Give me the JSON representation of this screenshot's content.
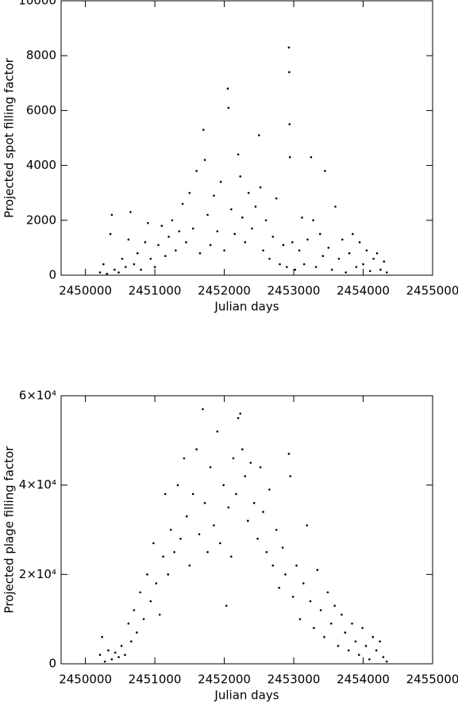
{
  "chart_data": [
    {
      "type": "scatter",
      "x_label": "Julian days",
      "y_label": "Projected spot filling factor",
      "color": "#000000",
      "xlim": [
        2449650,
        2455000
      ],
      "xticks": [
        2450000,
        2451000,
        2452000,
        2453000,
        2454000,
        2455000
      ],
      "ylim": [
        0,
        10000
      ],
      "yticks": [
        0,
        2000,
        4000,
        6000,
        8000,
        10000
      ],
      "x": [
        2450210,
        2450260,
        2450310,
        2450360,
        2450380,
        2450420,
        2450480,
        2450530,
        2450580,
        2450620,
        2450650,
        2450700,
        2450750,
        2450800,
        2450860,
        2450900,
        2450940,
        2451000,
        2451050,
        2451100,
        2451150,
        2451200,
        2451250,
        2451300,
        2451350,
        2451400,
        2451450,
        2451500,
        2451550,
        2451600,
        2451650,
        2451700,
        2451720,
        2451760,
        2451800,
        2451850,
        2451900,
        2451950,
        2452000,
        2452050,
        2452060,
        2452100,
        2452150,
        2452200,
        2452230,
        2452260,
        2452300,
        2452350,
        2452400,
        2452450,
        2452500,
        2452520,
        2452560,
        2452600,
        2452650,
        2452700,
        2452750,
        2452800,
        2452850,
        2452900,
        2452930,
        2452935,
        2452940,
        2452945,
        2452980,
        2453020,
        2453080,
        2453120,
        2453150,
        2453200,
        2453250,
        2453280,
        2453320,
        2453380,
        2453420,
        2453450,
        2453500,
        2453550,
        2453600,
        2453650,
        2453700,
        2453750,
        2453800,
        2453850,
        2453900,
        2453950,
        2454000,
        2454050,
        2454100,
        2454150,
        2454200,
        2454250,
        2454300,
        2454340
      ],
      "values": [
        100,
        400,
        50,
        1500,
        2200,
        200,
        100,
        600,
        300,
        1300,
        2300,
        400,
        800,
        200,
        1200,
        1900,
        600,
        300,
        1100,
        1800,
        700,
        1400,
        2000,
        900,
        1600,
        2600,
        1200,
        3000,
        1700,
        3800,
        800,
        5300,
        4200,
        2200,
        1100,
        2900,
        1600,
        3400,
        900,
        6800,
        6100,
        2400,
        1500,
        4400,
        3600,
        2100,
        1200,
        3000,
        1700,
        2500,
        5100,
        3200,
        900,
        2000,
        600,
        1400,
        2800,
        400,
        1100,
        300,
        8300,
        7400,
        5500,
        4300,
        1200,
        200,
        900,
        2100,
        400,
        1300,
        4300,
        2000,
        300,
        1500,
        700,
        3800,
        1000,
        200,
        2500,
        600,
        1300,
        100,
        800,
        1500,
        300,
        1200,
        400,
        900,
        150,
        600,
        800,
        200,
        500,
        100
      ]
    },
    {
      "type": "scatter",
      "x_label": "Julian days",
      "y_label": "Projected plage filling factor",
      "color": "#000000",
      "xlim": [
        2449650,
        2455000
      ],
      "xticks": [
        2450000,
        2451000,
        2452000,
        2453000,
        2454000,
        2455000
      ],
      "ylim": [
        0,
        60000
      ],
      "yticks": [
        0,
        {
          "value": 20000,
          "label": "2×10⁴"
        },
        {
          "value": 40000,
          "label": "4×10⁴"
        },
        {
          "value": 60000,
          "label": "6×10⁴"
        }
      ],
      "x": [
        2450210,
        2450240,
        2450280,
        2450330,
        2450380,
        2450430,
        2450480,
        2450520,
        2450570,
        2450620,
        2450660,
        2450700,
        2450740,
        2450790,
        2450840,
        2450890,
        2450940,
        2450980,
        2451020,
        2451070,
        2451120,
        2451150,
        2451190,
        2451230,
        2451280,
        2451330,
        2451370,
        2451420,
        2451460,
        2451500,
        2451550,
        2451600,
        2451640,
        2451690,
        2451720,
        2451760,
        2451800,
        2451850,
        2451900,
        2451940,
        2451990,
        2452030,
        2452060,
        2452100,
        2452130,
        2452170,
        2452200,
        2452230,
        2452260,
        2452300,
        2452340,
        2452380,
        2452430,
        2452480,
        2452520,
        2452560,
        2452610,
        2452650,
        2452700,
        2452750,
        2452790,
        2452840,
        2452880,
        2452930,
        2452950,
        2452990,
        2453040,
        2453090,
        2453140,
        2453190,
        2453240,
        2453290,
        2453340,
        2453390,
        2453440,
        2453490,
        2453540,
        2453590,
        2453640,
        2453690,
        2453740,
        2453790,
        2453840,
        2453890,
        2453940,
        2453990,
        2454040,
        2454090,
        2454140,
        2454190,
        2454240,
        2454290,
        2454340
      ],
      "values": [
        2000,
        6000,
        500,
        3000,
        1000,
        2500,
        1500,
        4000,
        2000,
        9000,
        5000,
        12000,
        7000,
        16000,
        10000,
        20000,
        14000,
        27000,
        18000,
        11000,
        24000,
        38000,
        20000,
        30000,
        25000,
        40000,
        28000,
        46000,
        33000,
        22000,
        38000,
        48000,
        29000,
        57000,
        36000,
        25000,
        44000,
        31000,
        52000,
        27000,
        40000,
        13000,
        35000,
        24000,
        46000,
        38000,
        55000,
        56000,
        48000,
        42000,
        32000,
        45000,
        36000,
        28000,
        44000,
        34000,
        25000,
        39000,
        22000,
        30000,
        17000,
        26000,
        20000,
        47000,
        42000,
        15000,
        22000,
        10000,
        18000,
        31000,
        14000,
        8000,
        21000,
        12000,
        6000,
        16000,
        9000,
        13000,
        4000,
        11000,
        7000,
        3000,
        9000,
        5000,
        2000,
        8000,
        4000,
        1000,
        6000,
        3000,
        5000,
        1500,
        500
      ]
    }
  ]
}
